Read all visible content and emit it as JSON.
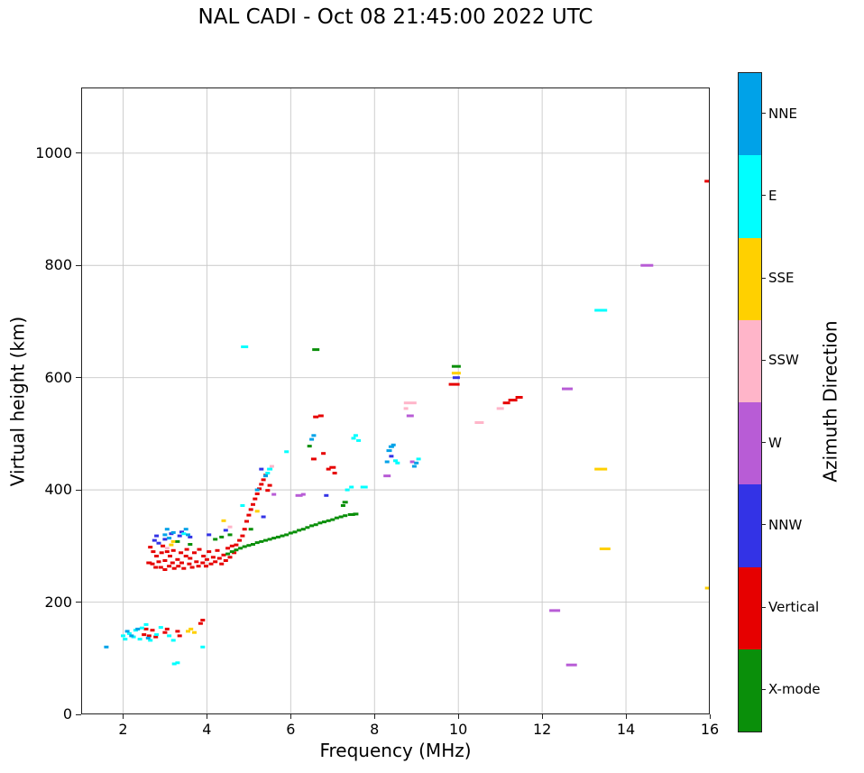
{
  "chart_data": {
    "type": "scatter",
    "title": "NAL CADI - Oct 08 21:45:00 2022 UTC",
    "xlabel": "Frequency (MHz)",
    "ylabel": "Virtual height (km)",
    "xlim": [
      1,
      16
    ],
    "ylim": [
      0,
      1117
    ],
    "x_ticks": [
      2,
      4,
      6,
      8,
      10,
      12,
      14,
      16
    ],
    "y_ticks": [
      0,
      200,
      400,
      600,
      800,
      1000
    ],
    "grid": true,
    "colorbar": {
      "title": "Azimuth Direction",
      "categories_top_to_bottom": [
        "NNE",
        "E",
        "SSE",
        "SSW",
        "W",
        "NNW",
        "Vertical",
        "X-mode"
      ]
    },
    "colors": {
      "NNE": "#00a2e8",
      "E": "#00ffff",
      "SSE": "#ffd000",
      "SSW": "#ffb5c9",
      "W": "#b85cd6",
      "NNW": "#3333e6",
      "Vertical": "#e60000",
      "X-mode": "#0a8f0a"
    },
    "series": [
      {
        "name": "Vertical",
        "points": [
          [
            2.62,
            270,
            6
          ],
          [
            2.65,
            298
          ],
          [
            2.7,
            268
          ],
          [
            2.72,
            290
          ],
          [
            2.78,
            262
          ],
          [
            2.8,
            282
          ],
          [
            2.85,
            272
          ],
          [
            2.9,
            262
          ],
          [
            2.92,
            288
          ],
          [
            2.95,
            300
          ],
          [
            3.0,
            258
          ],
          [
            3.0,
            274
          ],
          [
            3.05,
            290
          ],
          [
            3.1,
            264
          ],
          [
            3.12,
            282
          ],
          [
            3.18,
            270
          ],
          [
            3.2,
            292
          ],
          [
            3.22,
            260
          ],
          [
            3.3,
            276
          ],
          [
            3.32,
            264
          ],
          [
            3.38,
            288
          ],
          [
            3.4,
            270
          ],
          [
            3.45,
            260
          ],
          [
            3.5,
            282
          ],
          [
            3.52,
            294
          ],
          [
            3.58,
            268
          ],
          [
            3.6,
            278
          ],
          [
            3.65,
            262
          ],
          [
            3.7,
            288
          ],
          [
            3.75,
            272
          ],
          [
            3.8,
            264
          ],
          [
            3.82,
            294
          ],
          [
            3.9,
            270
          ],
          [
            3.92,
            282
          ],
          [
            3.98,
            264
          ],
          [
            4.0,
            276
          ],
          [
            4.05,
            290
          ],
          [
            4.1,
            268
          ],
          [
            4.15,
            280
          ],
          [
            4.2,
            272
          ],
          [
            4.25,
            292
          ],
          [
            4.3,
            278
          ],
          [
            4.35,
            268
          ],
          [
            4.4,
            284
          ],
          [
            4.45,
            274
          ],
          [
            4.5,
            296
          ],
          [
            4.55,
            280
          ],
          [
            4.6,
            300
          ],
          [
            4.65,
            288
          ],
          [
            4.7,
            302
          ],
          [
            4.78,
            310
          ],
          [
            4.85,
            318
          ],
          [
            4.9,
            330
          ],
          [
            4.95,
            344
          ],
          [
            5.0,
            355
          ],
          [
            5.05,
            365
          ],
          [
            5.1,
            374
          ],
          [
            5.15,
            384
          ],
          [
            5.2,
            393
          ],
          [
            5.25,
            402
          ],
          [
            5.3,
            410
          ],
          [
            5.35,
            418
          ],
          [
            5.4,
            426
          ],
          [
            5.45,
            399
          ],
          [
            5.5,
            408
          ],
          [
            6.55,
            455,
            6
          ],
          [
            6.6,
            530,
            6
          ],
          [
            6.72,
            532,
            6
          ],
          [
            6.78,
            465
          ],
          [
            6.9,
            437
          ],
          [
            7.0,
            440,
            7
          ],
          [
            7.05,
            430
          ],
          [
            9.9,
            588,
            12
          ],
          [
            11.15,
            555,
            8
          ],
          [
            11.3,
            560,
            10
          ],
          [
            11.45,
            565,
            8
          ],
          [
            15.95,
            950,
            7
          ],
          [
            2.5,
            142
          ],
          [
            2.55,
            152
          ],
          [
            2.62,
            140
          ],
          [
            2.7,
            150
          ],
          [
            2.78,
            138
          ],
          [
            3.0,
            146
          ],
          [
            3.05,
            152
          ],
          [
            3.3,
            148
          ],
          [
            3.35,
            140
          ],
          [
            3.85,
            162
          ],
          [
            3.9,
            168
          ]
        ]
      },
      {
        "name": "NNW",
        "points": [
          [
            2.75,
            310
          ],
          [
            2.8,
            318
          ],
          [
            2.85,
            305
          ],
          [
            3.0,
            312
          ],
          [
            3.15,
            322
          ],
          [
            3.35,
            318
          ],
          [
            3.4,
            325
          ],
          [
            3.6,
            316
          ],
          [
            4.05,
            320
          ],
          [
            4.45,
            328
          ],
          [
            5.3,
            437
          ],
          [
            5.35,
            352
          ],
          [
            6.85,
            390
          ],
          [
            8.4,
            460
          ],
          [
            9.95,
            600,
            8
          ]
        ]
      },
      {
        "name": "SSW",
        "points": [
          [
            3.05,
            296
          ],
          [
            4.55,
            334
          ],
          [
            5.55,
            442
          ],
          [
            8.75,
            545
          ],
          [
            8.85,
            555,
            14
          ],
          [
            10.5,
            520,
            10
          ],
          [
            11.0,
            545,
            8
          ]
        ]
      },
      {
        "name": "SSE",
        "points": [
          [
            3.55,
            148
          ],
          [
            3.62,
            152
          ],
          [
            3.7,
            146
          ],
          [
            3.15,
            302
          ],
          [
            3.2,
            308
          ],
          [
            4.4,
            345
          ],
          [
            5.2,
            362
          ],
          [
            9.95,
            608,
            10
          ],
          [
            13.4,
            437,
            14
          ],
          [
            13.5,
            295,
            12
          ],
          [
            15.95,
            225,
            6
          ]
        ]
      },
      {
        "name": "W",
        "points": [
          [
            5.6,
            392
          ],
          [
            6.2,
            390,
            8
          ],
          [
            6.3,
            392
          ],
          [
            8.3,
            425,
            8
          ],
          [
            8.85,
            532,
            8
          ],
          [
            8.9,
            450
          ],
          [
            12.3,
            185,
            12
          ],
          [
            12.6,
            580,
            12
          ],
          [
            12.7,
            88,
            12
          ],
          [
            14.5,
            800,
            14
          ]
        ]
      },
      {
        "name": "E",
        "points": [
          [
            2.0,
            140
          ],
          [
            2.05,
            134
          ],
          [
            2.15,
            144
          ],
          [
            2.25,
            138
          ],
          [
            2.3,
            150
          ],
          [
            2.4,
            134
          ],
          [
            2.45,
            154
          ],
          [
            2.55,
            160
          ],
          [
            2.65,
            132
          ],
          [
            2.8,
            142
          ],
          [
            2.9,
            155
          ],
          [
            3.1,
            140
          ],
          [
            3.2,
            132
          ],
          [
            3.22,
            90
          ],
          [
            3.3,
            92
          ],
          [
            3.9,
            120
          ],
          [
            3.45,
            322
          ],
          [
            4.85,
            372
          ],
          [
            4.9,
            655,
            8
          ],
          [
            5.45,
            430
          ],
          [
            5.5,
            437,
            6
          ],
          [
            5.9,
            468
          ],
          [
            7.35,
            400
          ],
          [
            7.45,
            405
          ],
          [
            7.5,
            492
          ],
          [
            7.55,
            497
          ],
          [
            7.62,
            488
          ],
          [
            7.75,
            405,
            8
          ],
          [
            8.5,
            452
          ],
          [
            8.55,
            448
          ],
          [
            9.05,
            455
          ],
          [
            13.4,
            720,
            14
          ]
        ]
      },
      {
        "name": "NNE",
        "points": [
          [
            1.6,
            120
          ],
          [
            2.1,
            148
          ],
          [
            2.2,
            140
          ],
          [
            2.35,
            152
          ],
          [
            2.6,
            136
          ],
          [
            3.0,
            320
          ],
          [
            3.05,
            330
          ],
          [
            3.1,
            314
          ],
          [
            3.2,
            324
          ],
          [
            3.5,
            330
          ],
          [
            3.55,
            320
          ],
          [
            5.2,
            400
          ],
          [
            5.4,
            425
          ],
          [
            6.5,
            490
          ],
          [
            6.55,
            497
          ],
          [
            8.3,
            450
          ],
          [
            8.35,
            470,
            6
          ],
          [
            8.4,
            477,
            6
          ],
          [
            8.45,
            480
          ],
          [
            8.95,
            442
          ],
          [
            9.0,
            448
          ]
        ]
      },
      {
        "name": "X-mode",
        "points": [
          [
            4.5,
            286
          ],
          [
            4.6,
            290
          ],
          [
            4.7,
            293
          ],
          [
            4.8,
            296
          ],
          [
            4.9,
            299
          ],
          [
            5.0,
            301
          ],
          [
            5.1,
            303
          ],
          [
            5.2,
            306
          ],
          [
            5.3,
            308
          ],
          [
            5.4,
            310
          ],
          [
            5.5,
            312
          ],
          [
            5.6,
            314
          ],
          [
            5.7,
            316
          ],
          [
            5.8,
            318
          ],
          [
            5.9,
            320
          ],
          [
            6.0,
            323
          ],
          [
            6.1,
            325
          ],
          [
            6.2,
            328
          ],
          [
            6.3,
            330
          ],
          [
            6.4,
            333
          ],
          [
            6.5,
            336
          ],
          [
            6.6,
            338
          ],
          [
            6.7,
            341
          ],
          [
            6.8,
            343
          ],
          [
            6.9,
            345
          ],
          [
            7.0,
            347
          ],
          [
            7.1,
            350
          ],
          [
            7.2,
            352
          ],
          [
            7.3,
            354
          ],
          [
            7.45,
            356,
            8
          ],
          [
            7.55,
            357,
            6
          ],
          [
            4.2,
            312
          ],
          [
            4.35,
            316
          ],
          [
            4.55,
            320
          ],
          [
            3.3,
            308
          ],
          [
            3.6,
            303
          ],
          [
            5.05,
            330
          ],
          [
            6.45,
            478
          ],
          [
            6.6,
            650,
            8
          ],
          [
            7.25,
            372
          ],
          [
            7.3,
            378,
            6
          ],
          [
            9.95,
            620,
            10
          ]
        ]
      }
    ]
  }
}
